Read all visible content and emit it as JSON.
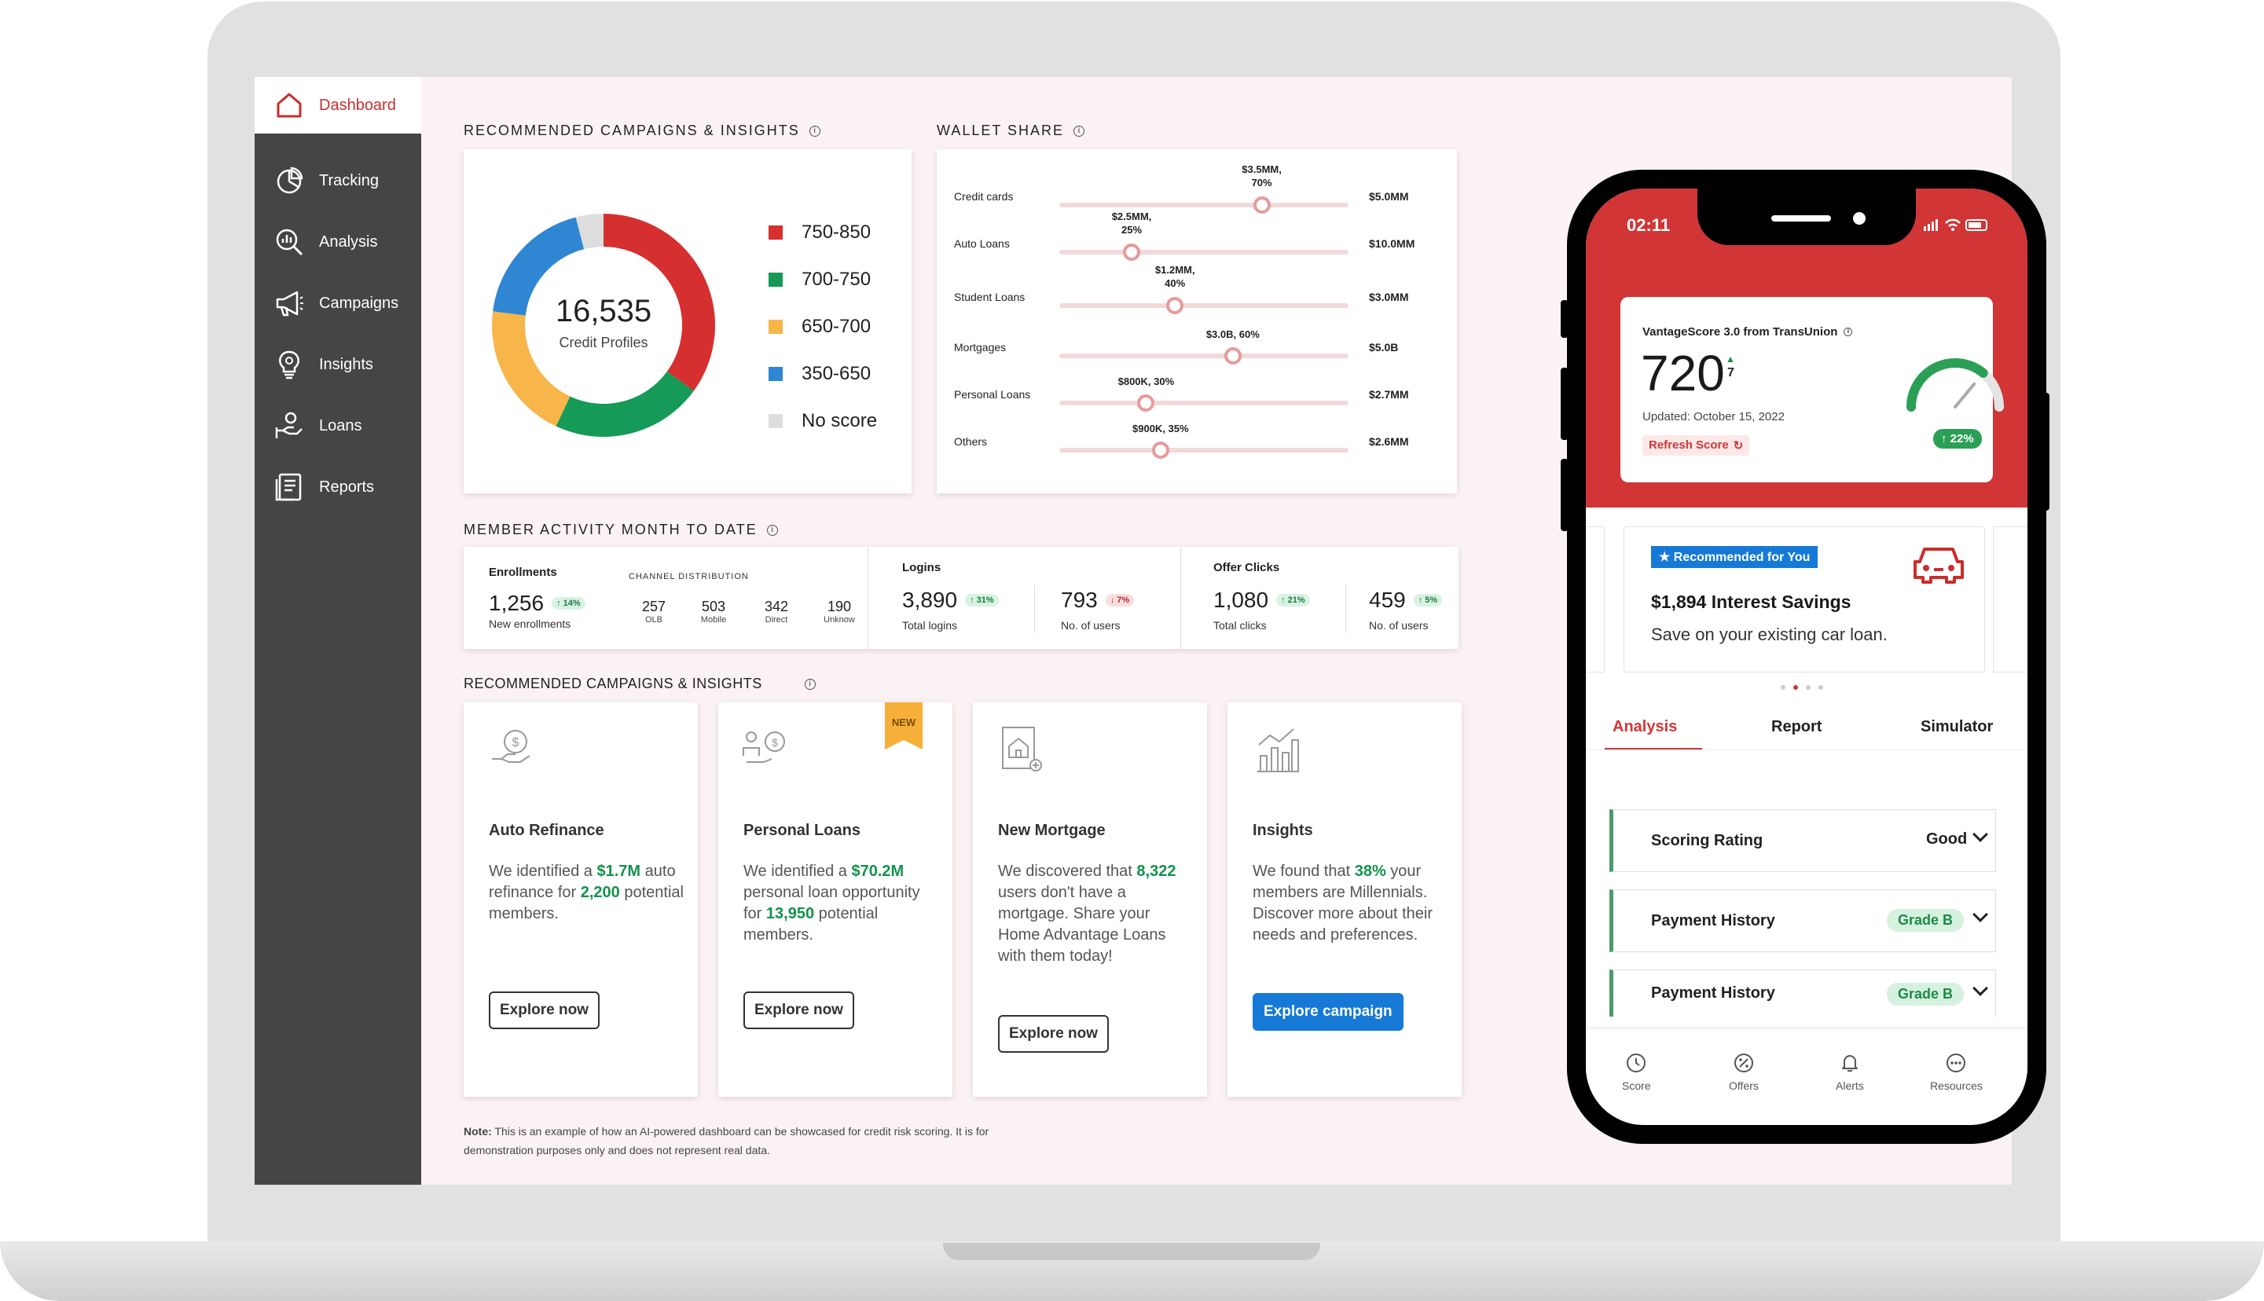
{
  "sidebar": {
    "home_label": "Dashboard",
    "items": [
      {
        "label": "Tracking",
        "icon": "pie-chart-icon"
      },
      {
        "label": "Analysis",
        "icon": "magnifier-chart-icon"
      },
      {
        "label": "Campaigns",
        "icon": "megaphone-icon"
      },
      {
        "label": "Insights",
        "icon": "lightbulb-icon"
      },
      {
        "label": "Loans",
        "icon": "hand-coin-icon"
      },
      {
        "label": "Reports",
        "icon": "document-icon"
      }
    ]
  },
  "section_titles": {
    "recommended_top": "RECOMMENDED CAMPAIGNS & INSIGHTS",
    "wallet_share": "WALLET SHARE",
    "member_activity": "MEMBER ACTIVITY MONTH TO DATE",
    "recommended_bottom": "RECOMMENDED CAMPAIGNS & INSIGHTS"
  },
  "chart_data": [
    {
      "type": "pie",
      "center_value": "16,535",
      "center_label": "Credit Profiles",
      "categories": [
        "750-850",
        "700-750",
        "650-700",
        "350-650",
        "No score"
      ],
      "values": [
        35,
        22,
        20,
        19,
        4
      ],
      "colors": [
        "#d62f2f",
        "#159a57",
        "#f7b54a",
        "#2f86d3",
        "#dddddd"
      ]
    },
    {
      "type": "bar",
      "title": "WALLET SHARE",
      "categories": [
        "Credit cards",
        "Auto Loans",
        "Student Loans",
        "Mortgages",
        "Personal Loans",
        "Others"
      ],
      "values": [
        70,
        25,
        40,
        60,
        30,
        35
      ],
      "value_labels": [
        "$3.5MM,\n70%",
        "$2.5MM,\n25%",
        "$1.2MM,\n40%",
        "$3.0B, 60%",
        "$800K, 30%",
        "$900K, 35%"
      ],
      "totals": [
        "$5.0MM",
        "$10.0MM",
        "$3.0MM",
        "$5.0B",
        "$2.7MM",
        "$2.6MM"
      ],
      "xlim": [
        0,
        100
      ]
    }
  ],
  "member_activity": {
    "enrollments": {
      "label": "Enrollments",
      "value": "1,256",
      "badge": "↑ 14%",
      "sub": "New enrollments"
    },
    "channel": {
      "title": "CHANNEL DISTRIBUTION",
      "items": [
        {
          "value": "257",
          "label": "OLB"
        },
        {
          "value": "503",
          "label": "Mobile"
        },
        {
          "value": "342",
          "label": "Direct"
        },
        {
          "value": "190",
          "label": "Unknow"
        }
      ]
    },
    "logins": {
      "label": "Logins",
      "value": "3,890",
      "badge": "↑ 31%",
      "sub": "Total logins",
      "users_value": "793",
      "users_badge": "↓ 7%",
      "users_sub": "No. of users"
    },
    "offer_clicks": {
      "label": "Offer Clicks",
      "value": "1,080",
      "badge": "↑ 21%",
      "sub": "Total clicks",
      "users_value": "459",
      "users_badge": "↑ 5%",
      "users_sub": "No. of users"
    }
  },
  "campaign_cards": [
    {
      "title": "Auto Refinance",
      "t1": "We identified a ",
      "h1": "$1.7M",
      "t2": " auto refinance for ",
      "h2": "2,200",
      "t3": " potential members.",
      "button": "Explore now",
      "icon": "hand-money-icon"
    },
    {
      "title": "Personal Loans",
      "t1": "We identified a ",
      "h1": "$70.2M",
      "t2": " personal loan opportunity for ",
      "h2": "13,950",
      "t3": " potential members.",
      "button": "Explore now",
      "icon": "people-money-icon",
      "ribbon": "NEW"
    },
    {
      "title": "New Mortgage",
      "t1": "We discovered that ",
      "h1": "8,322",
      "t2": " users don't have a mortgage. Share your Home Advantage Loans with them today!",
      "h2": "",
      "t3": "",
      "button": "Explore now",
      "icon": "house-document-icon"
    },
    {
      "title": "Insights",
      "t1": "We found that ",
      "h1": "38%",
      "t2": " your members are Millennials. Discover more about their needs and preferences.",
      "h2": "",
      "t3": "",
      "button": "Explore campaign",
      "icon": "bar-chart-icon"
    }
  ],
  "note": {
    "prefix": "Note:",
    "text": " This is an example of how an AI-powered dashboard can be showcased for credit risk scoring. It is for",
    "text2": "demonstration purposes only and does not represent real data."
  },
  "phone": {
    "time": "02:11",
    "score_card": {
      "title": "VantageScore 3.0 from TransUnion",
      "score": "720",
      "delta": "7",
      "updated": "Updated: October 15, 2022",
      "refresh": "Refresh Score",
      "gauge_badge": "↑ 22%",
      "gauge_fraction": 0.72
    },
    "promo": {
      "tag": "★ Recommended for You",
      "title": "$1,894 Interest Savings",
      "text": "Save on your existing car loan.",
      "icon": "car-icon"
    },
    "tabs": [
      "Analysis",
      "Report",
      "Simulator"
    ],
    "accordion": [
      {
        "label": "Scoring Rating",
        "value": "Good"
      },
      {
        "label": "Payment History",
        "value": "Grade B"
      },
      {
        "label": "Payment History",
        "value": "Grade B"
      }
    ],
    "bottom_nav": [
      {
        "label": "Score",
        "icon": "clock-icon"
      },
      {
        "label": "Offers",
        "icon": "percent-icon"
      },
      {
        "label": "Alerts",
        "icon": "bell-icon"
      },
      {
        "label": "Resources",
        "icon": "dots-icon"
      }
    ]
  }
}
